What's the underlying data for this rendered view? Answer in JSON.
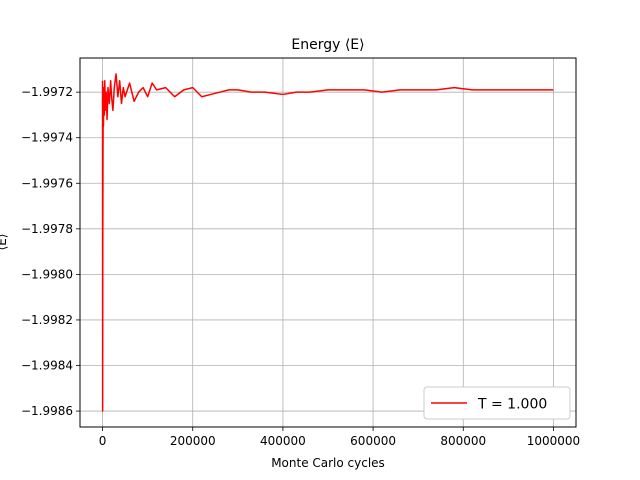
{
  "chart_data": {
    "type": "line",
    "title": "Energy ⟨E⟩",
    "xlabel": "Monte Carlo cycles",
    "ylabel": "⟨E⟩",
    "xlim": [
      -50000,
      1050000
    ],
    "ylim": [
      -1.99867,
      -1.99705
    ],
    "xticks": [
      0,
      200000,
      400000,
      600000,
      800000,
      1000000
    ],
    "xtick_labels": [
      "0",
      "200000",
      "400000",
      "600000",
      "800000",
      "1000000"
    ],
    "yticks": [
      -1.9986,
      -1.9984,
      -1.9982,
      -1.998,
      -1.9978,
      -1.9976,
      -1.9974,
      -1.9972
    ],
    "ytick_labels": [
      "−1.9986",
      "−1.9984",
      "−1.9982",
      "−1.9980",
      "−1.9978",
      "−1.9976",
      "−1.9974",
      "−1.9972"
    ],
    "grid": true,
    "legend_position": "lower-right",
    "series": [
      {
        "name": "T = 1.000",
        "color": "#ff0000",
        "x": [
          0,
          200,
          500,
          1000,
          1500,
          2000,
          3000,
          4000,
          5000,
          6000,
          8000,
          10000,
          12000,
          15000,
          18000,
          20000,
          23000,
          26000,
          30000,
          34000,
          38000,
          42000,
          46000,
          50000,
          60000,
          70000,
          80000,
          90000,
          100000,
          110000,
          120000,
          140000,
          160000,
          180000,
          200000,
          220000,
          240000,
          260000,
          280000,
          300000,
          330000,
          360000,
          400000,
          430000,
          460000,
          500000,
          540000,
          580000,
          620000,
          660000,
          700000,
          740000,
          780000,
          820000,
          860000,
          900000,
          940000,
          980000,
          1000000
        ],
        "y": [
          -1.99715,
          -1.9986,
          -1.9979,
          -1.99745,
          -1.99725,
          -1.99735,
          -1.99718,
          -1.9973,
          -1.99715,
          -1.99728,
          -1.9972,
          -1.99732,
          -1.99718,
          -1.99725,
          -1.99715,
          -1.99722,
          -1.99728,
          -1.99718,
          -1.99712,
          -1.99722,
          -1.99715,
          -1.99725,
          -1.99718,
          -1.99722,
          -1.99716,
          -1.99724,
          -1.9972,
          -1.99718,
          -1.99722,
          -1.99716,
          -1.99719,
          -1.99718,
          -1.99722,
          -1.99719,
          -1.99718,
          -1.99722,
          -1.99721,
          -1.9972,
          -1.99719,
          -1.99719,
          -1.9972,
          -1.9972,
          -1.99721,
          -1.9972,
          -1.9972,
          -1.99719,
          -1.99719,
          -1.99719,
          -1.9972,
          -1.99719,
          -1.99719,
          -1.99719,
          -1.99718,
          -1.99719,
          -1.99719,
          -1.99719,
          -1.99719,
          -1.99719,
          -1.99719
        ]
      }
    ]
  }
}
